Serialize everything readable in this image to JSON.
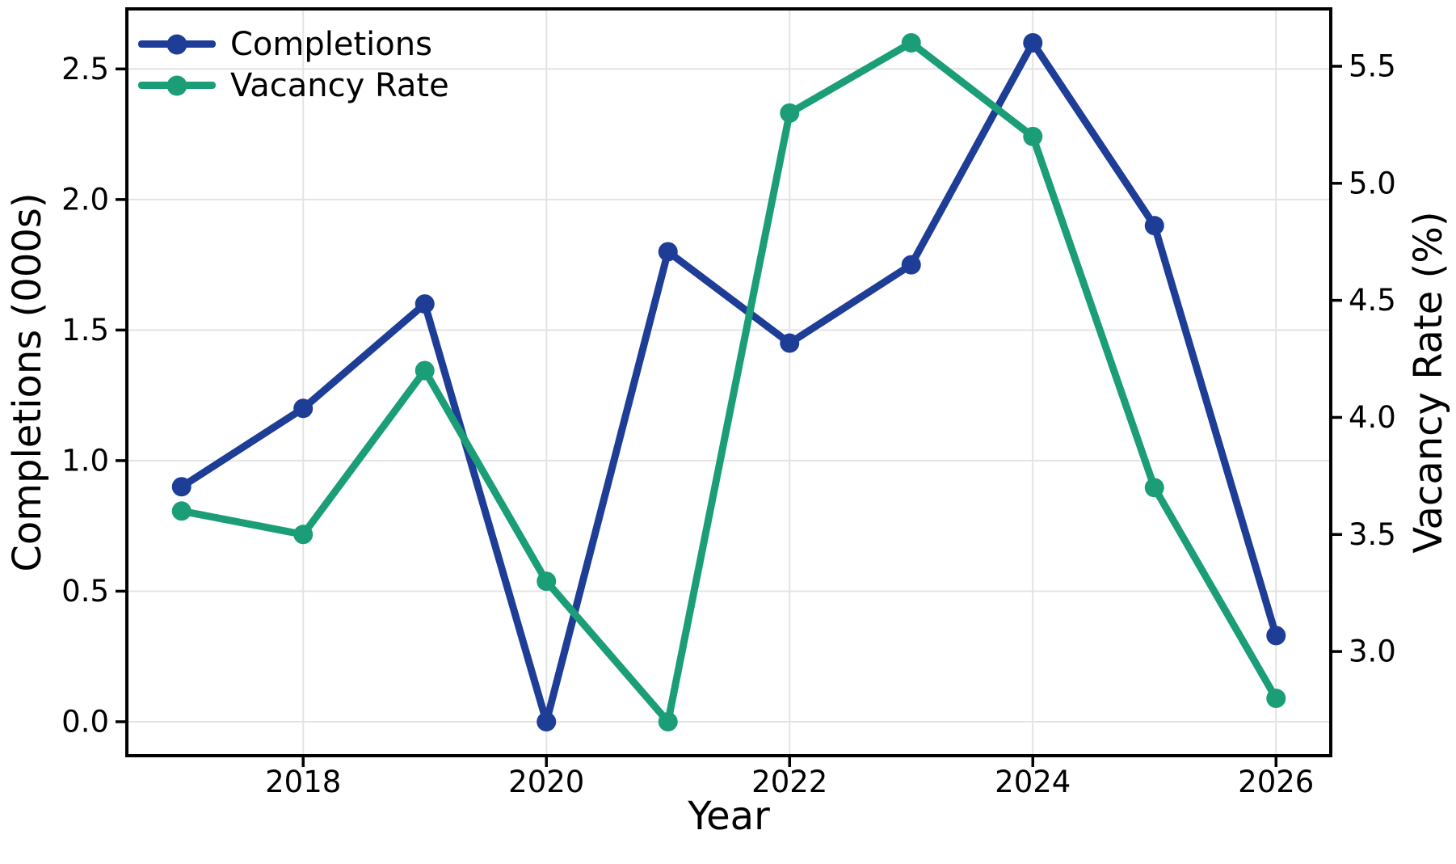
{
  "figure": {
    "background": "#ffffff",
    "grid_color": "#e3e3e3",
    "spine_color": "#000000",
    "text_color": "#000000"
  },
  "chart_data": {
    "type": "line",
    "title": "",
    "grid": true,
    "legend_position": "upper-left",
    "x": [
      2017,
      2018,
      2019,
      2020,
      2021,
      2022,
      2023,
      2024,
      2025,
      2026
    ],
    "axes": {
      "x": {
        "label": "Year",
        "ticks": [
          2018,
          2020,
          2022,
          2024,
          2026
        ],
        "lim": [
          2016.55,
          2026.45
        ]
      },
      "left": {
        "label": "Completions (000s)",
        "ticks": [
          0.0,
          0.5,
          1.0,
          1.5,
          2.0,
          2.5
        ],
        "lim": [
          -0.13,
          2.73
        ]
      },
      "right": {
        "label": "Vacancy Rate (%)",
        "ticks": [
          3.0,
          3.5,
          4.0,
          4.5,
          5.0,
          5.5
        ],
        "lim": [
          2.555,
          5.745
        ]
      }
    },
    "series": [
      {
        "name": "Completions",
        "axis": "left",
        "color": "#1e3d96",
        "values": [
          0.9,
          1.2,
          1.6,
          0.0,
          1.8,
          1.45,
          1.75,
          2.6,
          1.9,
          0.33
        ]
      },
      {
        "name": "Vacancy Rate",
        "axis": "right",
        "color": "#1b9e77",
        "values": [
          3.6,
          3.5,
          4.2,
          3.3,
          2.7,
          5.3,
          5.6,
          5.2,
          3.7,
          2.8
        ]
      }
    ]
  }
}
